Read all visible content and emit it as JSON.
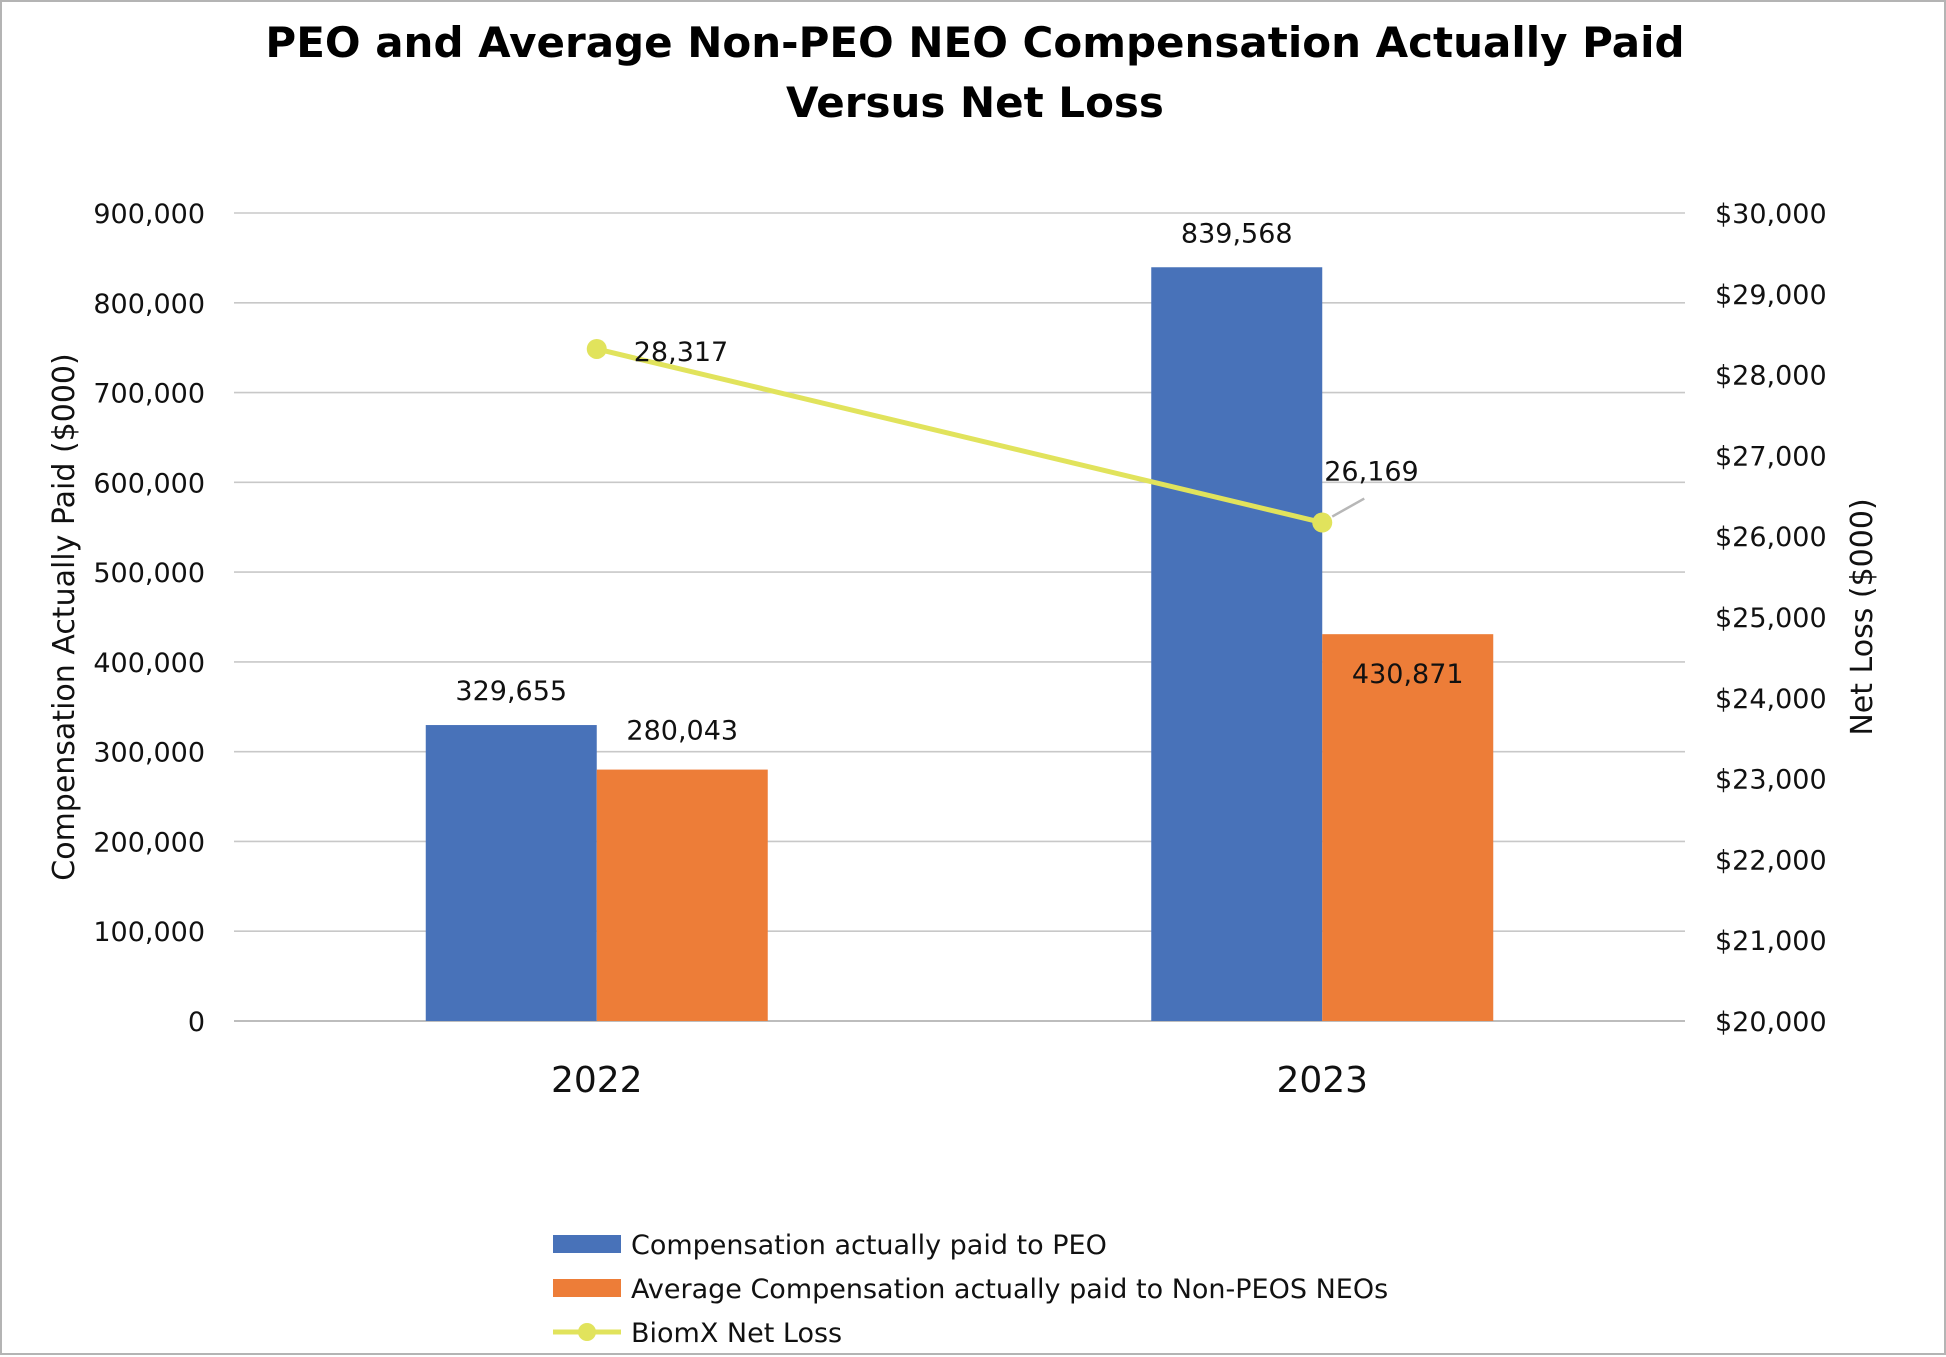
{
  "chart_data": {
    "type": "bar",
    "title_lines": [
      "PEO and Average Non-PEO NEO Compensation Actually Paid",
      "Versus Net Loss"
    ],
    "categories": [
      "2022",
      "2023"
    ],
    "series": [
      {
        "name": "Compensation actually paid to PEO",
        "type": "bar",
        "axis": "left",
        "color": "#4872B9",
        "values": [
          329655,
          839568
        ],
        "labels": [
          "329,655",
          "839,568"
        ]
      },
      {
        "name": "Average Compensation actually paid to Non-PEOS NEOs",
        "type": "bar",
        "axis": "left",
        "color": "#ED7D38",
        "values": [
          280043,
          430871
        ],
        "labels": [
          "280,043",
          "430,871"
        ]
      },
      {
        "name": "BiomX Net Loss",
        "type": "line",
        "axis": "right",
        "color": "#E1E35C",
        "values": [
          28317,
          26169
        ],
        "labels": [
          "28,317",
          "26,169"
        ]
      }
    ],
    "y_left": {
      "label": "Compensation Actually Paid ($000)",
      "ylim": [
        0,
        900000
      ],
      "ticks": [
        0,
        100000,
        200000,
        300000,
        400000,
        500000,
        600000,
        700000,
        800000,
        900000
      ],
      "tick_labels": [
        "0",
        "100,000",
        "200,000",
        "300,000",
        "400,000",
        "500,000",
        "600,000",
        "700,000",
        "800,000",
        "900,000"
      ]
    },
    "y_right": {
      "label": "Net Loss ($000)",
      "ylim": [
        20000,
        30000
      ],
      "ticks": [
        20000,
        21000,
        22000,
        23000,
        24000,
        25000,
        26000,
        27000,
        28000,
        29000,
        30000
      ],
      "tick_labels": [
        "$20,000",
        "$21,000",
        "$22,000",
        "$23,000",
        "$24,000",
        "$25,000",
        "$26,000",
        "$27,000",
        "$28,000",
        "$29,000",
        "$30,000"
      ]
    },
    "grid": true,
    "legend_position": "bottom"
  }
}
